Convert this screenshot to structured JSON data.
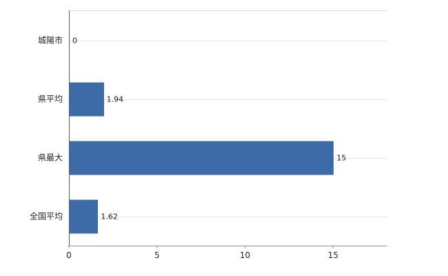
{
  "chart_data": {
    "type": "bar",
    "orientation": "horizontal",
    "title": "",
    "xlabel": "",
    "ylabel": "",
    "categories": [
      "城陽市",
      "県平均",
      "県最大",
      "全国平均"
    ],
    "values": [
      0,
      1.94,
      15,
      1.62
    ],
    "value_labels": [
      "0",
      "1.94",
      "15",
      "1.62"
    ],
    "xlim": [
      0,
      18
    ],
    "x_ticks": [
      0,
      5,
      10,
      15
    ],
    "x_tick_labels": [
      "0",
      "5",
      "10",
      "15"
    ],
    "bar_color": "#3d6ba8",
    "grid": "horizontal gridline through each category row",
    "legend": "none",
    "background_color": "#ffffff"
  }
}
